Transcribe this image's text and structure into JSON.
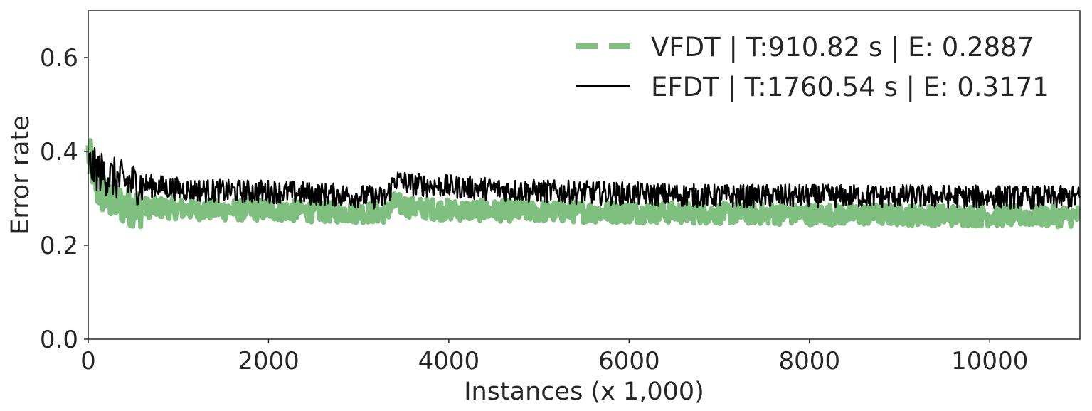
{
  "chart_data": {
    "type": "line",
    "title": "",
    "xlabel": "Instances (x 1,000)",
    "ylabel": "Error rate",
    "xlim": [
      0,
      11000
    ],
    "ylim": [
      0,
      0.7
    ],
    "xticks": [
      0,
      2000,
      4000,
      6000,
      8000,
      10000
    ],
    "xtick_labels": [
      "0",
      "2000",
      "4000",
      "6000",
      "8000",
      "10000"
    ],
    "yticks": [
      0.0,
      0.2,
      0.4,
      0.6
    ],
    "ytick_labels": [
      "0.0",
      "0.2",
      "0.4",
      "0.6"
    ],
    "grid": false,
    "legend_position": "top-right",
    "series": [
      {
        "name": "VFDT | T:910.82 s | E: 0.2887",
        "color": "#7fbf7f",
        "style": "dashed",
        "x": [
          0,
          100,
          200,
          400,
          600,
          800,
          1000,
          1500,
          2000,
          2500,
          3000,
          3300,
          3400,
          3600,
          4000,
          5000,
          6000,
          7000,
          8000,
          9000,
          10000,
          11000
        ],
        "y": [
          0.4,
          0.32,
          0.3,
          0.285,
          0.28,
          0.28,
          0.278,
          0.275,
          0.275,
          0.272,
          0.27,
          0.27,
          0.29,
          0.28,
          0.275,
          0.272,
          0.27,
          0.268,
          0.266,
          0.265,
          0.263,
          0.262
        ]
      },
      {
        "name": "EFDT | T:1760.54 s | E: 0.3171",
        "color": "#000000",
        "style": "solid",
        "x": [
          0,
          100,
          200,
          400,
          600,
          800,
          1000,
          1500,
          2000,
          2500,
          3000,
          3300,
          3400,
          3600,
          4000,
          5000,
          6000,
          7000,
          8000,
          9000,
          10000,
          11000
        ],
        "y": [
          0.37,
          0.36,
          0.35,
          0.335,
          0.33,
          0.325,
          0.32,
          0.315,
          0.315,
          0.31,
          0.305,
          0.3,
          0.34,
          0.33,
          0.325,
          0.315,
          0.31,
          0.305,
          0.305,
          0.305,
          0.303,
          0.302
        ]
      }
    ]
  }
}
